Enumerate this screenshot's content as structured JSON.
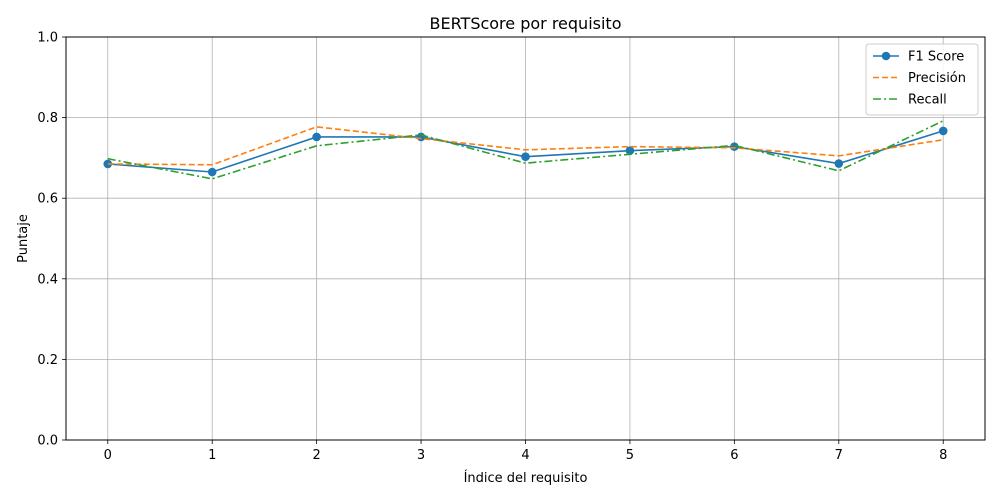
{
  "chart_data": {
    "type": "line",
    "title": "BERTScore por requisito",
    "xlabel": "Índice del requisito",
    "ylabel": "Puntaje",
    "x": [
      0,
      1,
      2,
      3,
      4,
      5,
      6,
      7,
      8
    ],
    "xlim": [
      -0.4,
      8.4
    ],
    "ylim": [
      0,
      1
    ],
    "x_ticks": [
      "0",
      "1",
      "2",
      "3",
      "4",
      "5",
      "6",
      "7",
      "8"
    ],
    "y_ticks": [
      "0.0",
      "0.2",
      "0.4",
      "0.6",
      "0.8",
      "1.0"
    ],
    "grid": true,
    "legend_position": "top-right",
    "series": [
      {
        "name": "F1 Score",
        "color": "#1f77b4",
        "style": "solid",
        "marker": "circle",
        "values": [
          0.685,
          0.665,
          0.752,
          0.752,
          0.703,
          0.718,
          0.728,
          0.686,
          0.767
        ]
      },
      {
        "name": "Precisión",
        "color": "#ff7f0e",
        "style": "dashed",
        "marker": "none",
        "values": [
          0.685,
          0.683,
          0.777,
          0.748,
          0.72,
          0.728,
          0.725,
          0.705,
          0.745
        ]
      },
      {
        "name": "Recall",
        "color": "#2ca02c",
        "style": "dashdot",
        "marker": "none",
        "values": [
          0.698,
          0.648,
          0.73,
          0.757,
          0.687,
          0.709,
          0.731,
          0.668,
          0.792
        ]
      }
    ]
  }
}
